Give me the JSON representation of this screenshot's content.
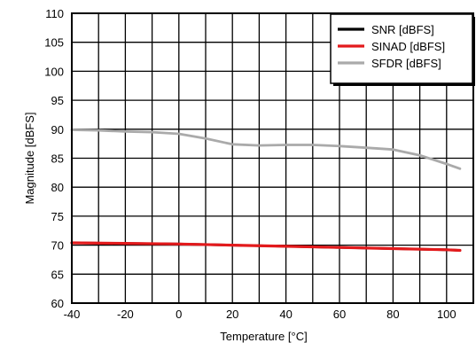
{
  "chart_data": {
    "type": "line",
    "xlabel": "Temperature [°C]",
    "ylabel": "Magnitude [dBFS]",
    "xlim": [
      -40,
      110
    ],
    "ylim": [
      60,
      110
    ],
    "xticks": [
      -40,
      -20,
      0,
      20,
      40,
      60,
      80,
      100
    ],
    "yticks": [
      60,
      65,
      70,
      75,
      80,
      85,
      90,
      95,
      100,
      105,
      110
    ],
    "grid": true,
    "legend_position": "top-right",
    "series": [
      {
        "name": "SNR [dBFS]",
        "color": "#000000",
        "x": [
          -40,
          -20,
          0,
          20,
          40,
          60,
          80,
          100,
          105
        ],
        "y": [
          70.4,
          70.3,
          70.2,
          70.0,
          69.8,
          69.6,
          69.4,
          69.2,
          69.1
        ]
      },
      {
        "name": "SINAD [dBFS]",
        "color": "#e31a1c",
        "x": [
          -40,
          -20,
          0,
          20,
          40,
          60,
          80,
          100,
          105
        ],
        "y": [
          70.4,
          70.3,
          70.2,
          70.0,
          69.8,
          69.6,
          69.4,
          69.2,
          69.1
        ]
      },
      {
        "name": "SFDR [dBFS]",
        "color": "#aaaaaa",
        "x": [
          -40,
          -30,
          -20,
          -10,
          0,
          10,
          20,
          30,
          40,
          50,
          60,
          70,
          80,
          90,
          100,
          105
        ],
        "y": [
          89.9,
          89.8,
          89.6,
          89.5,
          89.2,
          88.4,
          87.4,
          87.2,
          87.3,
          87.3,
          87.1,
          86.8,
          86.5,
          85.5,
          84.0,
          83.2
        ]
      }
    ]
  }
}
